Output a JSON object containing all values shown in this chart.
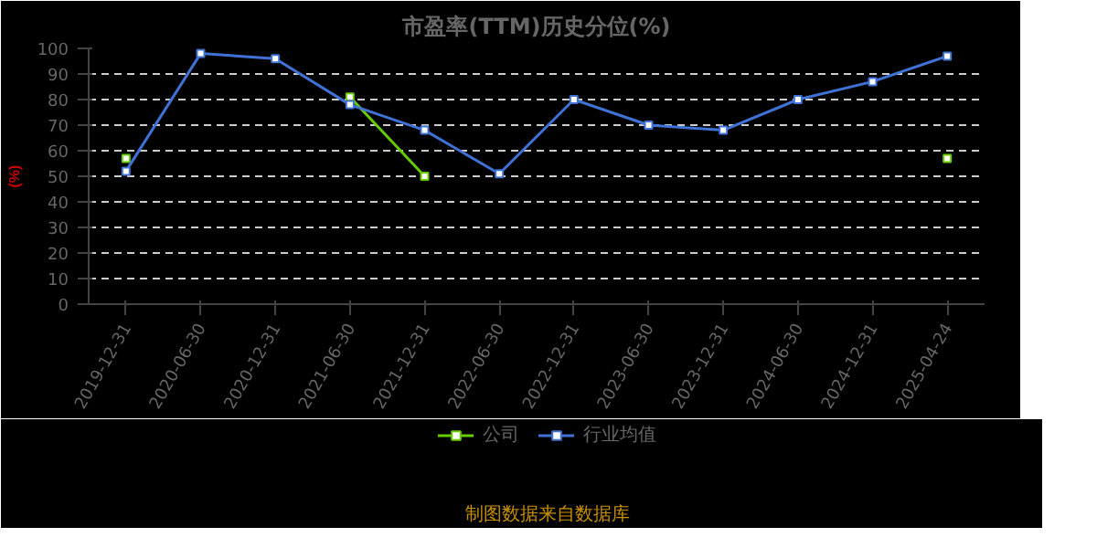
{
  "chart_data": {
    "type": "line",
    "title": "市盈率(TTM)历史分位(%)",
    "ylabel": "(%)",
    "categories": [
      "2019-12-31",
      "2020-06-30",
      "2020-12-31",
      "2021-06-30",
      "2021-12-31",
      "2022-06-30",
      "2022-12-31",
      "2023-06-30",
      "2023-12-31",
      "2024-06-30",
      "2024-12-31",
      "2025-04-24"
    ],
    "series": [
      {
        "name": "公司",
        "color": "#66cc00",
        "values": [
          57,
          null,
          null,
          81,
          50,
          null,
          null,
          null,
          null,
          null,
          null,
          57
        ]
      },
      {
        "name": "行业均值",
        "color": "#3f72d4",
        "values": [
          52,
          98,
          96,
          78,
          68,
          51,
          80,
          70,
          68,
          80,
          87,
          97
        ]
      }
    ],
    "ylim": [
      0,
      100
    ],
    "yticks": [
      0,
      10,
      20,
      30,
      40,
      50,
      60,
      70,
      80,
      90,
      100
    ],
    "grid": "y",
    "legend": "bottom",
    "marker": "square",
    "line_style": "solid",
    "annotations": [
      "制图数据来自数据库"
    ]
  }
}
